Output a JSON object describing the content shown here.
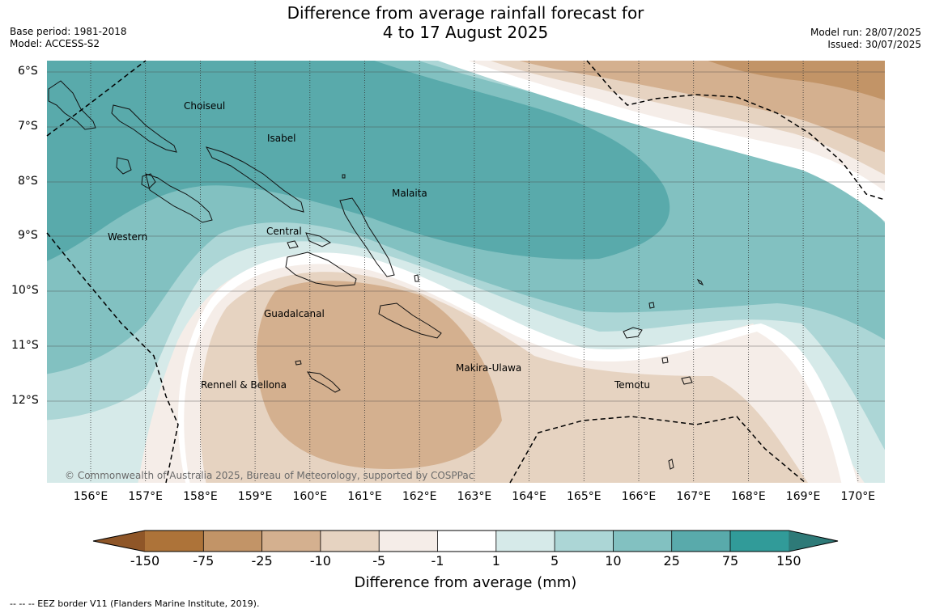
{
  "title_line1": "Difference from average rainfall forecast for",
  "title_line2": "4 to 17 August 2025",
  "meta_left": [
    "Base period: 1981-2018",
    "Model: ACCESS-S2"
  ],
  "meta_right": [
    "Model run: 28/07/2025",
    "Issued: 30/07/2025"
  ],
  "lat_labels": [
    "6°S",
    "7°S",
    "8°S",
    "9°S",
    "10°S",
    "11°S",
    "12°S"
  ],
  "lon_labels": [
    "156°E",
    "157°E",
    "158°E",
    "159°E",
    "160°E",
    "161°E",
    "162°E",
    "163°E",
    "164°E",
    "165°E",
    "166°E",
    "167°E",
    "168°E",
    "169°E",
    "170°E"
  ],
  "regions": [
    "Choiseul",
    "Isabel",
    "Malaita",
    "Western",
    "Central",
    "Guadalcanal",
    "Makira-Ulawa",
    "Rennell & Bellona",
    "Temotu"
  ],
  "copyright": "© Commonwealth of Australia 2025, Bureau of Meteorology, supported by COSPPac",
  "colorbar": {
    "ticks": [
      "-150",
      "-75",
      "-25",
      "-10",
      "-5",
      "-1",
      "1",
      "5",
      "10",
      "25",
      "75",
      "150"
    ],
    "colors": [
      "#ad7339",
      "#c29467",
      "#d4b08f",
      "#e6d3c1",
      "#f5ede8",
      "#ffffff",
      "#d6eae9",
      "#acd6d6",
      "#82c1c1",
      "#59aaab",
      "#319b99"
    ],
    "low_extend": "#8f5628",
    "high_extend": "#2e7a78",
    "label": "Difference from average (mm)"
  },
  "footer": "--  --  -- EEZ border V11 (Flanders Marine Institute, 2019)."
}
